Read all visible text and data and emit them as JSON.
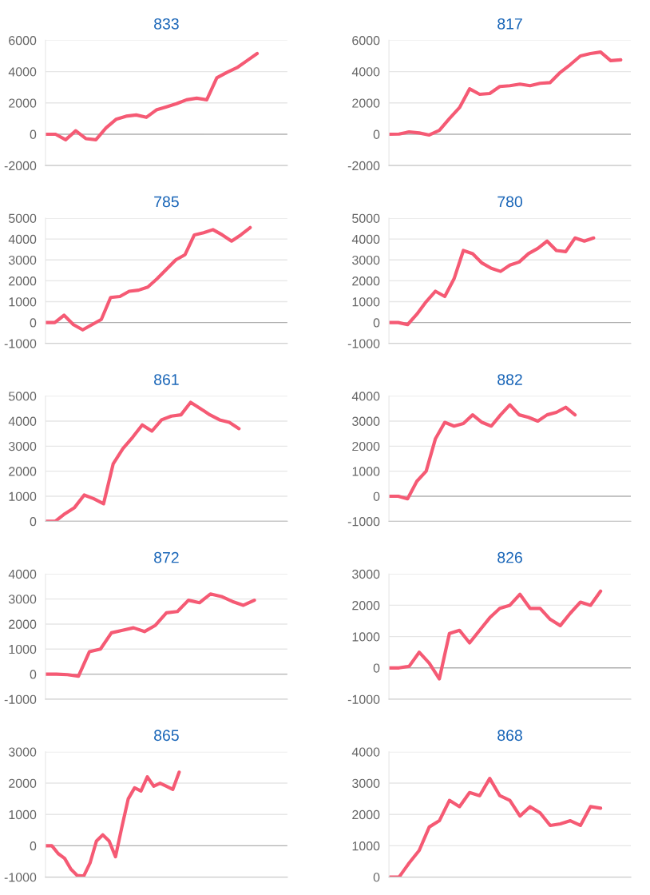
{
  "chart_data": [
    {
      "type": "line",
      "title": "833",
      "categories": [
        null,
        null,
        null,
        null,
        null,
        null,
        null,
        null,
        null,
        null,
        null,
        null,
        null,
        null,
        null,
        null,
        null,
        null,
        null,
        null,
        null,
        null,
        null,
        null,
        null
      ],
      "series": [
        {
          "color": "#f55a74",
          "values": [
            0,
            0,
            -350,
            220,
            -280,
            -350,
            400,
            950,
            1150,
            1230,
            1080,
            1550,
            1750,
            1950,
            2200,
            2300,
            2200,
            3600,
            3950,
            4250,
            4700,
            5150,
            null,
            null,
            null
          ]
        }
      ],
      "ylim": [
        -2000,
        6000
      ],
      "yticks": [
        -2000,
        0,
        2000,
        4000,
        6000
      ],
      "grid": "y",
      "marker": "none",
      "line_style": "solid",
      "tick_labels": "y"
    },
    {
      "type": "line",
      "title": "817",
      "categories": [
        null,
        null,
        null,
        null,
        null,
        null,
        null,
        null,
        null,
        null,
        null,
        null,
        null,
        null,
        null,
        null,
        null,
        null,
        null,
        null,
        null,
        null,
        null,
        null,
        null
      ],
      "series": [
        {
          "color": "#f55a74",
          "values": [
            0,
            10,
            150,
            80,
            -50,
            250,
            1000,
            1700,
            2900,
            2550,
            2600,
            3050,
            3100,
            3200,
            3100,
            3250,
            3300,
            3950,
            4450,
            5000,
            5150,
            5250,
            4700,
            4750,
            null
          ]
        }
      ],
      "ylim": [
        -2000,
        6000
      ],
      "yticks": [
        -2000,
        0,
        2000,
        4000,
        6000
      ],
      "grid": "y",
      "marker": "none",
      "line_style": "solid",
      "tick_labels": "y"
    },
    {
      "type": "line",
      "title": "785",
      "categories": [
        null,
        null,
        null,
        null,
        null,
        null,
        null,
        null,
        null,
        null,
        null,
        null,
        null,
        null,
        null,
        null,
        null,
        null,
        null,
        null,
        null,
        null,
        null,
        null,
        null,
        null,
        null
      ],
      "series": [
        {
          "color": "#f55a74",
          "values": [
            0,
            0,
            350,
            -100,
            -350,
            -100,
            150,
            1200,
            1250,
            1500,
            1550,
            1700,
            2100,
            2550,
            3000,
            3250,
            4200,
            4300,
            4450,
            4200,
            3900,
            4200,
            4550,
            null,
            null,
            null,
            null
          ]
        }
      ],
      "ylim": [
        -1000,
        5000
      ],
      "yticks": [
        -1000,
        0,
        1000,
        2000,
        3000,
        4000,
        5000
      ],
      "grid": "y",
      "marker": "none",
      "line_style": "solid",
      "tick_labels": "y"
    },
    {
      "type": "line",
      "title": "780",
      "categories": [
        null,
        null,
        null,
        null,
        null,
        null,
        null,
        null,
        null,
        null,
        null,
        null,
        null,
        null,
        null,
        null,
        null,
        null,
        null,
        null,
        null,
        null,
        null,
        null,
        null,
        null,
        null
      ],
      "series": [
        {
          "color": "#f55a74",
          "values": [
            0,
            0,
            -100,
            400,
            1000,
            1500,
            1250,
            2100,
            3450,
            3300,
            2850,
            2600,
            2450,
            2750,
            2900,
            3300,
            3550,
            3900,
            3450,
            3400,
            4050,
            3900,
            4050,
            null,
            null,
            null,
            null
          ]
        }
      ],
      "ylim": [
        -1000,
        5000
      ],
      "yticks": [
        -1000,
        0,
        1000,
        2000,
        3000,
        4000,
        5000
      ],
      "grid": "y",
      "marker": "none",
      "line_style": "solid",
      "tick_labels": "y"
    },
    {
      "type": "line",
      "title": "861",
      "categories": [
        null,
        null,
        null,
        null,
        null,
        null,
        null,
        null,
        null,
        null,
        null,
        null,
        null,
        null,
        null,
        null,
        null,
        null,
        null,
        null,
        null,
        null,
        null,
        null,
        null,
        null
      ],
      "series": [
        {
          "color": "#f55a74",
          "values": [
            0,
            0,
            300,
            550,
            1050,
            900,
            700,
            2300,
            2900,
            3350,
            3850,
            3600,
            4050,
            4200,
            4250,
            4750,
            4500,
            4250,
            4050,
            3950,
            3700,
            null,
            null,
            null,
            null,
            null
          ]
        }
      ],
      "ylim": [
        0,
        5000
      ],
      "yticks": [
        0,
        1000,
        2000,
        3000,
        4000,
        5000
      ],
      "grid": "y",
      "marker": "none",
      "line_style": "solid",
      "tick_labels": "y"
    },
    {
      "type": "line",
      "title": "882",
      "categories": [
        null,
        null,
        null,
        null,
        null,
        null,
        null,
        null,
        null,
        null,
        null,
        null,
        null,
        null,
        null,
        null,
        null,
        null,
        null,
        null,
        null,
        null,
        null,
        null,
        null,
        null,
        null
      ],
      "series": [
        {
          "color": "#f55a74",
          "values": [
            0,
            0,
            -100,
            600,
            1000,
            2300,
            2950,
            2800,
            2900,
            3250,
            2950,
            2800,
            3250,
            3650,
            3250,
            3150,
            3000,
            3250,
            3350,
            3550,
            3250,
            null,
            null,
            null,
            null,
            null,
            null
          ]
        }
      ],
      "ylim": [
        -1000,
        4000
      ],
      "yticks": [
        -1000,
        0,
        1000,
        2000,
        3000,
        4000
      ],
      "grid": "y",
      "marker": "none",
      "line_style": "solid",
      "tick_labels": "y"
    },
    {
      "type": "line",
      "title": "872",
      "categories": [
        null,
        null,
        null,
        null,
        null,
        null,
        null,
        null,
        null,
        null,
        null,
        null,
        null,
        null,
        null,
        null,
        null,
        null,
        null,
        null,
        null,
        null,
        null
      ],
      "series": [
        {
          "color": "#f55a74",
          "values": [
            0,
            0,
            -20,
            -80,
            900,
            1000,
            1650,
            1750,
            1850,
            1700,
            1950,
            2450,
            2500,
            2950,
            2850,
            3200,
            3100,
            2900,
            2750,
            2950,
            null,
            null,
            null
          ]
        }
      ],
      "ylim": [
        -1000,
        4000
      ],
      "yticks": [
        -1000,
        0,
        1000,
        2000,
        3000,
        4000
      ],
      "grid": "y",
      "marker": "none",
      "line_style": "solid",
      "tick_labels": "y"
    },
    {
      "type": "line",
      "title": "826",
      "categories": [
        null,
        null,
        null,
        null,
        null,
        null,
        null,
        null,
        null,
        null,
        null,
        null,
        null,
        null,
        null,
        null,
        null,
        null,
        null,
        null,
        null,
        null,
        null,
        null,
        null
      ],
      "series": [
        {
          "color": "#f55a74",
          "values": [
            0,
            0,
            50,
            500,
            150,
            -350,
            1100,
            1200,
            800,
            1200,
            1600,
            1900,
            2000,
            2350,
            1900,
            1900,
            1550,
            1350,
            1750,
            2100,
            2000,
            2450,
            null,
            null,
            null
          ]
        }
      ],
      "ylim": [
        -1000,
        3000
      ],
      "yticks": [
        -1000,
        0,
        1000,
        2000,
        3000
      ],
      "grid": "y",
      "marker": "none",
      "line_style": "solid",
      "tick_labels": "y"
    },
    {
      "type": "line",
      "title": "865",
      "categories": [
        null,
        null,
        null,
        null,
        null,
        null,
        null,
        null,
        null,
        null,
        null,
        null,
        null,
        null,
        null,
        null,
        null,
        null,
        null,
        null,
        null,
        null,
        null,
        null,
        null,
        null,
        null,
        null,
        null,
        null,
        null,
        null,
        null,
        null,
        null,
        null,
        null,
        null,
        null
      ],
      "series": [
        {
          "color": "#f55a74",
          "values": [
            0,
            0,
            -250,
            -400,
            -750,
            -950,
            -970,
            -550,
            150,
            350,
            150,
            -350,
            600,
            1500,
            1850,
            1750,
            2200,
            1900,
            2000,
            1900,
            1800,
            2350,
            null,
            null,
            null,
            null,
            null,
            null,
            null,
            null,
            null,
            null,
            null,
            null,
            null,
            null,
            null,
            null,
            null
          ]
        }
      ],
      "ylim": [
        -1000,
        3000
      ],
      "yticks": [
        -1000,
        0,
        1000,
        2000,
        3000
      ],
      "grid": "y",
      "marker": "none",
      "line_style": "solid",
      "tick_labels": "y"
    },
    {
      "type": "line",
      "title": "868",
      "categories": [
        null,
        null,
        null,
        null,
        null,
        null,
        null,
        null,
        null,
        null,
        null,
        null,
        null,
        null,
        null,
        null,
        null,
        null,
        null,
        null,
        null,
        null,
        null,
        null,
        null
      ],
      "series": [
        {
          "color": "#f55a74",
          "values": [
            0,
            0,
            450,
            850,
            1600,
            1800,
            2450,
            2250,
            2700,
            2600,
            3150,
            2600,
            2450,
            1950,
            2250,
            2050,
            1650,
            1700,
            1800,
            1650,
            2250,
            2200,
            null,
            null,
            null
          ]
        }
      ],
      "ylim": [
        0,
        4000
      ],
      "yticks": [
        0,
        1000,
        2000,
        3000,
        4000
      ],
      "grid": "y",
      "marker": "none",
      "line_style": "solid",
      "tick_labels": "y"
    }
  ]
}
